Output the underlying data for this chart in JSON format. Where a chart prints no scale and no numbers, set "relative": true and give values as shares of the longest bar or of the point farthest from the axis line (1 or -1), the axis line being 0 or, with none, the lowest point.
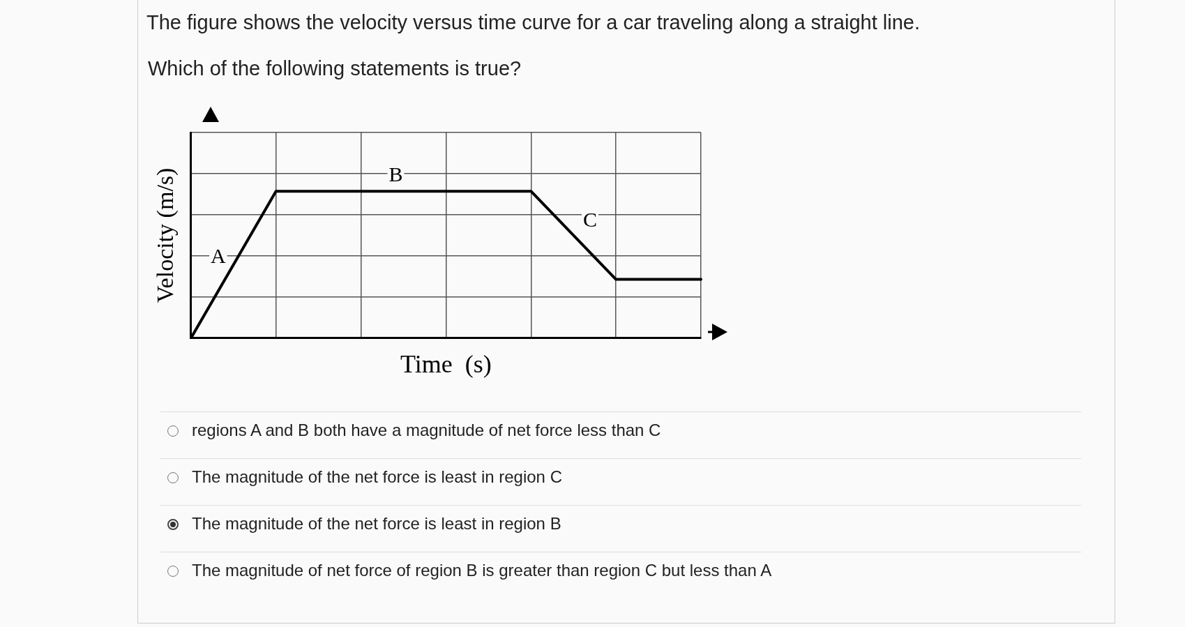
{
  "chart_data": {
    "type": "line",
    "title": "The figure shows the velocity versus time curve for a car traveling along a straight line.",
    "subtitle": "Which of the following statements is true?",
    "xlabel": "Time  (s)",
    "ylabel": "Velocity (m/s)",
    "categories": [
      null,
      null,
      null,
      null,
      null,
      null,
      null
    ],
    "series": [
      {
        "color": "#000000",
        "values": [
          0,
          1,
          1,
          1,
          1,
          0.4,
          0.4
        ]
      }
    ],
    "relative": true,
    "grid": true,
    "legend": false,
    "tick_labels": false,
    "marker": "none",
    "line_style": "solid",
    "annotations": [
      "A",
      "B",
      "C",
      "regions A and B both have a magnitude of net force less than C",
      "The magnitude of the net force is least in region C",
      "The magnitude of the net force is least in region B",
      "The magnitude of net force of region B is greater than region C but less than A"
    ]
  }
}
